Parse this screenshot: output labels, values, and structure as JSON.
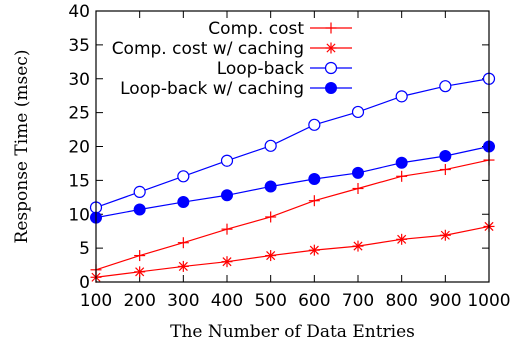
{
  "chart_data": {
    "type": "line",
    "title": "",
    "xlabel": "The Number of Data Entries",
    "ylabel": "Response Time (msec)",
    "x": [
      100,
      200,
      300,
      400,
      500,
      600,
      700,
      800,
      900,
      1000
    ],
    "xticks": [
      "100",
      "200",
      "300",
      "400",
      "500",
      "600",
      "700",
      "800",
      "900",
      "1000"
    ],
    "yticks": [
      "0",
      "5",
      "10",
      "15",
      "20",
      "25",
      "30",
      "35",
      "40"
    ],
    "xlim": [
      100,
      1000
    ],
    "ylim": [
      0,
      40
    ],
    "grid": false,
    "legend_position": "top-right",
    "series": [
      {
        "name": "Comp. cost",
        "marker": "plus",
        "color": "#ff0000",
        "values": [
          1.8,
          3.9,
          5.8,
          7.8,
          9.6,
          12.0,
          13.8,
          15.6,
          16.6,
          18.0
        ]
      },
      {
        "name": "Comp. cost w/ caching",
        "marker": "star",
        "color": "#ff0000",
        "values": [
          0.7,
          1.5,
          2.3,
          3.0,
          3.9,
          4.7,
          5.3,
          6.3,
          6.9,
          8.2
        ]
      },
      {
        "name": "Loop-back",
        "marker": "open-circle",
        "color": "#0000ff",
        "values": [
          11.0,
          13.3,
          15.6,
          17.9,
          20.1,
          23.2,
          25.1,
          27.4,
          28.9,
          30.0
        ]
      },
      {
        "name": "Loop-back w/ caching",
        "marker": "filled-circle",
        "color": "#0000ff",
        "values": [
          9.5,
          10.7,
          11.8,
          12.8,
          14.1,
          15.2,
          16.1,
          17.6,
          18.6,
          20.0
        ]
      }
    ]
  }
}
